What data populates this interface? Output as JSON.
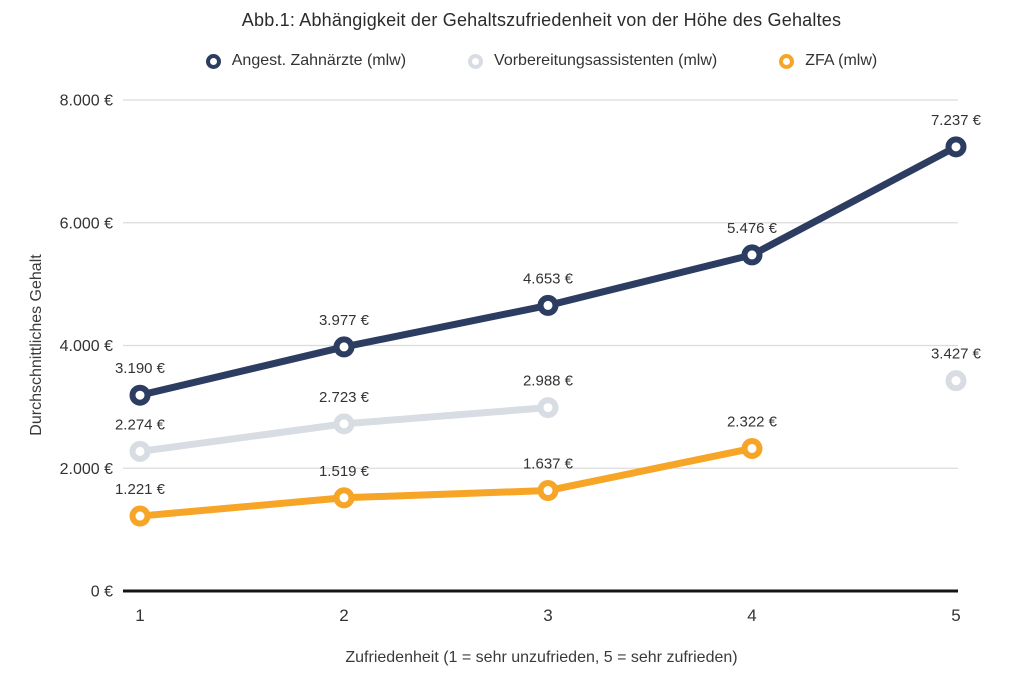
{
  "chart_data": {
    "type": "line",
    "title": "Abb.1: Abhängigkeit der Gehaltszufriedenheit von der Höhe des Gehaltes",
    "xlabel": "Zufriedenheit (1 = sehr unzufrieden, 5 = sehr zufrieden)",
    "ylabel": "Durchschnittliches Gehalt",
    "x_ticks": [
      1,
      2,
      3,
      4,
      5
    ],
    "x_tick_labels": [
      "1",
      "2",
      "3",
      "4",
      "5"
    ],
    "y_ticks": [
      0,
      2000,
      4000,
      6000,
      8000
    ],
    "y_tick_labels": [
      "0 €",
      "2.000 €",
      "4.000 €",
      "6.000 €",
      "8.000 €"
    ],
    "xlim": [
      1,
      5
    ],
    "ylim": [
      0,
      8000
    ],
    "grid": "horizontal-only",
    "legend_position": "top-center",
    "colors": {
      "background": "#ffffff",
      "gridline": "#dcdcdc",
      "axis_line": "#141414",
      "label_text": "#333333"
    },
    "series": [
      {
        "name": "Angest. Zahnärzte (mlw)",
        "color": "#2d3d62",
        "x": [
          1,
          2,
          3,
          4,
          5
        ],
        "values": [
          3190,
          3977,
          4653,
          5476,
          7237
        ],
        "point_labels": [
          "3.190 €",
          "3.977 €",
          "4.653 €",
          "5.476 €",
          "7.237 €"
        ]
      },
      {
        "name": "Vorbereitungsassistenten (mlw)",
        "color": "#d8dce3",
        "x": [
          1,
          2,
          3,
          5
        ],
        "values": [
          2274,
          2723,
          2988,
          3427
        ],
        "point_labels": [
          "2.274 €",
          "2.723 €",
          "2.988 €",
          "3.427 €"
        ]
      },
      {
        "name": "ZFA (mlw)",
        "color": "#f7a526",
        "x": [
          1,
          2,
          3,
          4
        ],
        "values": [
          1221,
          1519,
          1637,
          2322
        ],
        "point_labels": [
          "1.221 €",
          "1.519 €",
          "1.637 €",
          "2.322 €"
        ]
      }
    ]
  }
}
